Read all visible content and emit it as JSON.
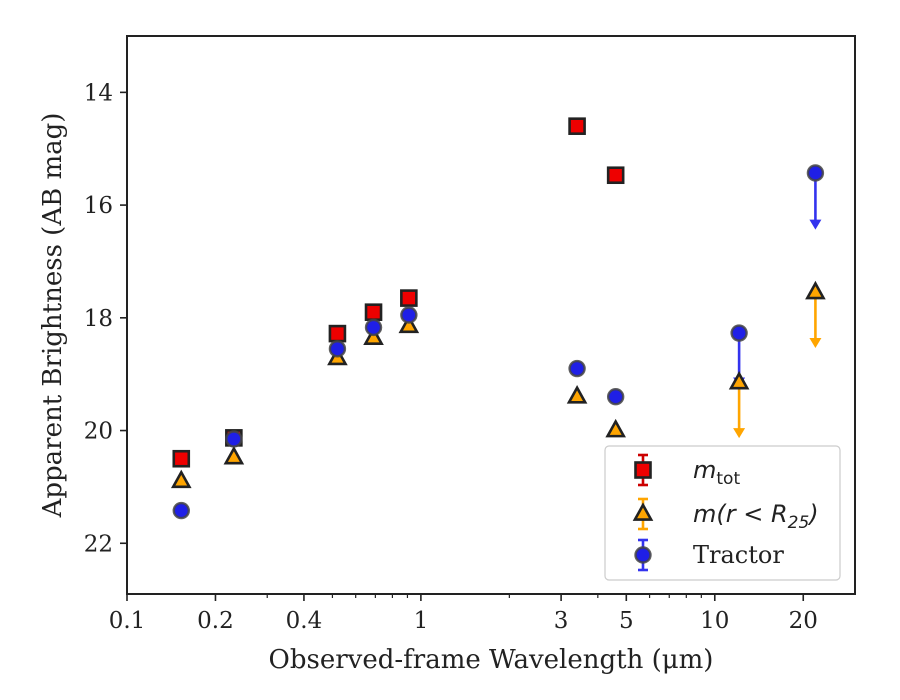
{
  "chart_data": {
    "type": "scatter",
    "xlabel": "Observed-frame Wavelength (μm)",
    "ylabel": "Apparent Brightness (AB mag)",
    "x_scale": "log",
    "xlim": [
      0.1,
      30
    ],
    "ylim": [
      22.9,
      13.0
    ],
    "y_inverted": true,
    "x_ticks": [
      {
        "value": 0.1,
        "label": "0.1"
      },
      {
        "value": 0.2,
        "label": "0.2"
      },
      {
        "value": 0.4,
        "label": "0.4"
      },
      {
        "value": 1,
        "label": "1"
      },
      {
        "value": 3,
        "label": "3"
      },
      {
        "value": 5,
        "label": "5"
      },
      {
        "value": 10,
        "label": "10"
      },
      {
        "value": 20,
        "label": "20"
      }
    ],
    "y_ticks": [
      {
        "value": 14,
        "label": "14"
      },
      {
        "value": 16,
        "label": "16"
      },
      {
        "value": 18,
        "label": "18"
      },
      {
        "value": 20,
        "label": "20"
      },
      {
        "value": 22,
        "label": "22"
      }
    ],
    "grid": false,
    "legend_position": "bottom-right",
    "series": [
      {
        "name": "m_tot",
        "legend_label": "m",
        "legend_sub": "tot",
        "marker": "square",
        "fill": "#ee0000",
        "bar_color": "#cc0000",
        "points": [
          {
            "x": 0.153,
            "y": 20.5
          },
          {
            "x": 0.231,
            "y": 20.13
          },
          {
            "x": 0.52,
            "y": 18.28
          },
          {
            "x": 0.69,
            "y": 17.9
          },
          {
            "x": 0.91,
            "y": 17.65
          },
          {
            "x": 3.4,
            "y": 14.6
          },
          {
            "x": 4.6,
            "y": 15.47
          }
        ],
        "upper_limits": []
      },
      {
        "name": "m(r < R25)",
        "legend_label": "m(r < R",
        "legend_sub": "25",
        "legend_tail": ")",
        "marker": "triangle",
        "fill": "#ffa500",
        "bar_color": "#ffa500",
        "points": [
          {
            "x": 0.153,
            "y": 20.9
          },
          {
            "x": 0.231,
            "y": 20.48
          },
          {
            "x": 0.52,
            "y": 18.72
          },
          {
            "x": 0.69,
            "y": 18.36
          },
          {
            "x": 0.91,
            "y": 18.15
          },
          {
            "x": 3.4,
            "y": 19.4
          },
          {
            "x": 4.6,
            "y": 20.0
          }
        ],
        "upper_limits": [
          {
            "x": 12.1,
            "y": 19.15,
            "to": 20.1
          },
          {
            "x": 22.0,
            "y": 17.55,
            "to": 18.5
          }
        ]
      },
      {
        "name": "Tractor",
        "legend_label": "Tractor",
        "marker": "circle",
        "fill": "#1f1fe6",
        "bar_color": "#3333ee",
        "points": [
          {
            "x": 0.153,
            "y": 21.42
          },
          {
            "x": 0.231,
            "y": 20.15
          },
          {
            "x": 0.52,
            "y": 18.55
          },
          {
            "x": 0.69,
            "y": 18.17
          },
          {
            "x": 0.91,
            "y": 17.95
          },
          {
            "x": 3.4,
            "y": 18.9
          },
          {
            "x": 4.6,
            "y": 19.4
          }
        ],
        "upper_limits": [
          {
            "x": 12.1,
            "y": 18.27,
            "to": 19.2
          },
          {
            "x": 22.0,
            "y": 15.43,
            "to": 16.4
          }
        ]
      }
    ]
  }
}
